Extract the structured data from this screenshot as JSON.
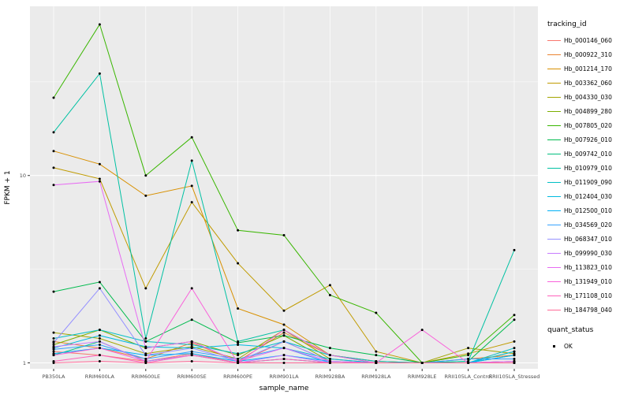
{
  "legend": {
    "tracking_title": "tracking_id",
    "quant_title": "quant_status",
    "quant_value": "OK"
  },
  "chart_data": {
    "type": "line",
    "title": "",
    "xlabel": "sample_name",
    "ylabel": "FPKM + 1",
    "y_scale": "log10",
    "ylim": [
      0.93,
      80
    ],
    "y_ticks": [
      1,
      10
    ],
    "y_minor": [
      3.162,
      31.62
    ],
    "grid": true,
    "legend_position": "right",
    "panel_bg": "#EBEBEB",
    "point_color": "#000000",
    "point_legend": {
      "title": "quant_status",
      "label": "OK"
    },
    "categories": [
      "PB350LA",
      "RRIM600LA",
      "RRIM600LE",
      "RRIM600SE",
      "RRIM600PE",
      "RRIM901LA",
      "RRIM928BA",
      "RRIM928LA",
      "RRIM928LE",
      "RRII105LA_Control",
      "RRII105LA_Stressed"
    ],
    "series": [
      {
        "name": "Hb_000146_060",
        "color": "#F8766D",
        "values": [
          1.15,
          1.1,
          1.02,
          1.12,
          1.0,
          1.3,
          1.02,
          1.0,
          1.0,
          1.0,
          1.02
        ]
      },
      {
        "name": "Hb_000922_310",
        "color": "#EA8331",
        "values": [
          1.3,
          1.2,
          1.05,
          1.28,
          1.02,
          1.45,
          1.1,
          1.02,
          1.0,
          1.05,
          1.1
        ]
      },
      {
        "name": "Hb_001214_170",
        "color": "#D89000",
        "values": [
          13.5,
          11.5,
          7.8,
          8.8,
          1.95,
          1.6,
          1.1,
          1.02,
          1.0,
          1.0,
          1.02
        ]
      },
      {
        "name": "Hb_003362_060",
        "color": "#C09B00",
        "values": [
          11.0,
          9.6,
          2.5,
          7.2,
          3.4,
          1.9,
          2.6,
          1.15,
          1.0,
          1.12,
          1.3
        ]
      },
      {
        "name": "Hb_004330_030",
        "color": "#A3A500",
        "values": [
          1.45,
          1.35,
          1.12,
          1.22,
          1.05,
          1.5,
          1.05,
          1.0,
          1.0,
          1.2,
          1.12
        ]
      },
      {
        "name": "Hb_004899_280",
        "color": "#7CAE00",
        "values": [
          1.25,
          1.5,
          1.2,
          1.3,
          1.1,
          1.4,
          1.02,
          1.0,
          1.0,
          1.0,
          1.15
        ]
      },
      {
        "name": "Hb_007805_020",
        "color": "#39B600",
        "values": [
          26,
          64,
          10,
          16,
          5.1,
          4.8,
          2.3,
          1.85,
          1.0,
          1.1,
          1.8
        ]
      },
      {
        "name": "Hb_007926_010",
        "color": "#00BB4E",
        "values": [
          2.4,
          2.7,
          1.3,
          1.7,
          1.28,
          1.4,
          1.2,
          1.1,
          1.0,
          1.02,
          1.7
        ]
      },
      {
        "name": "Hb_009742_010",
        "color": "#00BF7D",
        "values": [
          1.1,
          1.3,
          1.02,
          1.1,
          1.0,
          1.05,
          1.0,
          1.0,
          1.0,
          1.0,
          1.1
        ]
      },
      {
        "name": "Hb_010979_010",
        "color": "#00C1A3",
        "values": [
          17,
          35,
          1.35,
          12,
          1.3,
          1.5,
          1.1,
          1.0,
          1.0,
          1.02,
          4.0
        ]
      },
      {
        "name": "Hb_011909_090",
        "color": "#00BFC4",
        "values": [
          1.35,
          1.5,
          1.3,
          1.25,
          1.12,
          1.3,
          1.1,
          1.02,
          1.0,
          1.0,
          1.2
        ]
      },
      {
        "name": "Hb_012404_030",
        "color": "#00BAE0",
        "values": [
          1.2,
          1.4,
          1.22,
          1.2,
          1.25,
          1.2,
          1.05,
          1.0,
          1.0,
          1.0,
          1.15
        ]
      },
      {
        "name": "Hb_012500_010",
        "color": "#00B0F6",
        "values": [
          1.12,
          1.2,
          1.1,
          1.12,
          1.02,
          1.1,
          1.02,
          1.0,
          1.0,
          1.0,
          1.1
        ]
      },
      {
        "name": "Hb_034569_020",
        "color": "#35A2FF",
        "values": [
          1.18,
          1.25,
          1.05,
          1.15,
          1.05,
          1.2,
          1.0,
          1.0,
          1.0,
          1.05,
          1.05
        ]
      },
      {
        "name": "Hb_068347_010",
        "color": "#9590FF",
        "values": [
          1.28,
          2.5,
          1.1,
          1.2,
          1.02,
          1.3,
          1.02,
          1.0,
          1.0,
          1.0,
          1.02
        ]
      },
      {
        "name": "Hb_099990_030",
        "color": "#C77CFF",
        "values": [
          1.22,
          1.3,
          1.02,
          1.1,
          1.0,
          1.1,
          1.0,
          1.0,
          1.0,
          1.0,
          1.0
        ]
      },
      {
        "name": "Hb_113823_010",
        "color": "#E76BF3",
        "values": [
          8.9,
          9.3,
          1.2,
          1.3,
          1.02,
          1.2,
          1.02,
          1.0,
          1.0,
          1.0,
          1.02
        ]
      },
      {
        "name": "Hb_131949_010",
        "color": "#FA62DB",
        "values": [
          1.1,
          1.2,
          1.02,
          2.5,
          1.0,
          1.5,
          1.1,
          1.0,
          1.5,
          1.0,
          1.0
        ]
      },
      {
        "name": "Hb_171108_010",
        "color": "#FF62BC",
        "values": [
          1.02,
          1.1,
          1.0,
          1.1,
          1.0,
          1.05,
          1.0,
          1.0,
          1.0,
          1.0,
          1.0
        ]
      },
      {
        "name": "Hb_184798_040",
        "color": "#FF6A98",
        "values": [
          1.0,
          1.02,
          1.0,
          1.02,
          1.0,
          1.0,
          1.0,
          1.0,
          1.0,
          1.0,
          1.0
        ]
      }
    ]
  }
}
